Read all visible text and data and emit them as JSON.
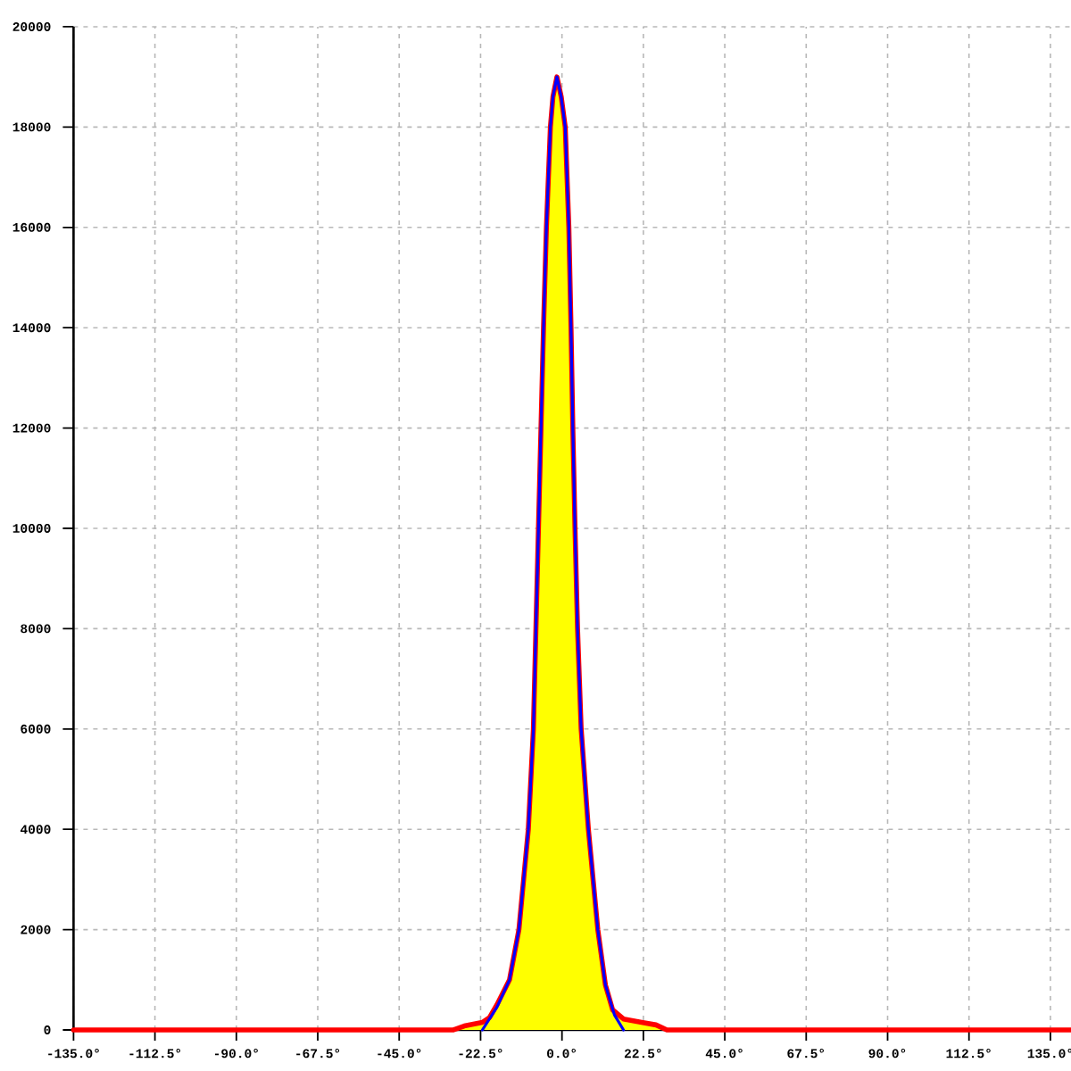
{
  "chart_data": {
    "type": "line",
    "xlim": [
      -135,
      140.7
    ],
    "ylim": [
      0,
      20000
    ],
    "xticks": [
      {
        "value": -135,
        "label": "-135.0°"
      },
      {
        "value": -112.5,
        "label": "-112.5°"
      },
      {
        "value": -90,
        "label": "-90.0°"
      },
      {
        "value": -67.5,
        "label": "-67.5°"
      },
      {
        "value": -45,
        "label": "-45.0°"
      },
      {
        "value": -22.5,
        "label": "-22.5°"
      },
      {
        "value": 0,
        "label": "0.0°"
      },
      {
        "value": 22.5,
        "label": "22.5°"
      },
      {
        "value": 45,
        "label": "45.0°"
      },
      {
        "value": 67.5,
        "label": "67.5°"
      },
      {
        "value": 90,
        "label": "90.0°"
      },
      {
        "value": 112.5,
        "label": "112.5°"
      },
      {
        "value": 135,
        "label": "135.0°"
      }
    ],
    "yticks": [
      0,
      2000,
      4000,
      6000,
      8000,
      10000,
      12000,
      14000,
      16000,
      18000,
      20000
    ],
    "grid": true,
    "series": [
      {
        "type": "area",
        "color": "#ffff00",
        "x": [
          -30,
          -27,
          -22,
          -20,
          -18,
          -14.5,
          -11.9,
          -9.3,
          -7.9,
          -7.2,
          -6.5,
          -5.8,
          -5.1,
          -4.3,
          -3.2,
          -2.5,
          -1.4,
          -0.2,
          0.9,
          1.9,
          2.5,
          3.0,
          3.6,
          4.3,
          5.3,
          7.3,
          9.9,
          12,
          14,
          17,
          22,
          26,
          29
        ],
        "values": [
          0,
          80,
          150,
          250,
          500,
          1000,
          2000,
          4000,
          6000,
          8000,
          10000,
          12000,
          14000,
          16000,
          18000,
          18600,
          19000,
          18600,
          18000,
          16000,
          14000,
          12000,
          10000,
          8000,
          6000,
          4000,
          2000,
          900,
          400,
          220,
          150,
          100,
          0
        ]
      },
      {
        "type": "line",
        "color": "#ff0000",
        "x": [
          -135,
          -30,
          -27,
          -22,
          -20,
          -18,
          -14.5,
          -11.9,
          -9.3,
          -7.9,
          -7.2,
          -6.5,
          -5.8,
          -5.1,
          -4.3,
          -3.2,
          -2.5,
          -1.4,
          -0.2,
          0.9,
          1.9,
          2.5,
          3.0,
          3.6,
          4.3,
          5.3,
          7.3,
          9.9,
          12,
          14,
          17,
          22,
          26,
          29,
          140.7
        ],
        "values": [
          0,
          0,
          80,
          150,
          250,
          500,
          1000,
          2000,
          4000,
          6000,
          8000,
          10000,
          12000,
          14000,
          16000,
          18000,
          18600,
          19000,
          18600,
          18000,
          16000,
          14000,
          12000,
          10000,
          8000,
          6000,
          4000,
          2000,
          900,
          400,
          220,
          150,
          100,
          0,
          0
        ]
      },
      {
        "type": "line",
        "color": "#0000ff",
        "x": [
          -22,
          -18,
          -14.5,
          -11.9,
          -9.3,
          -7.9,
          -7.2,
          -6.5,
          -5.8,
          -5.1,
          -4.3,
          -3.2,
          -2.5,
          -1.4,
          -0.2,
          0.9,
          1.9,
          2.5,
          3.0,
          3.6,
          4.3,
          5.3,
          7.3,
          9.9,
          12,
          14.5,
          17
        ],
        "values": [
          0,
          450,
          1000,
          2000,
          4000,
          6000,
          8000,
          10000,
          12000,
          14000,
          16000,
          18000,
          18600,
          19000,
          18600,
          18000,
          16000,
          14000,
          12000,
          10000,
          8000,
          6000,
          4000,
          2000,
          900,
          300,
          0
        ]
      }
    ]
  }
}
